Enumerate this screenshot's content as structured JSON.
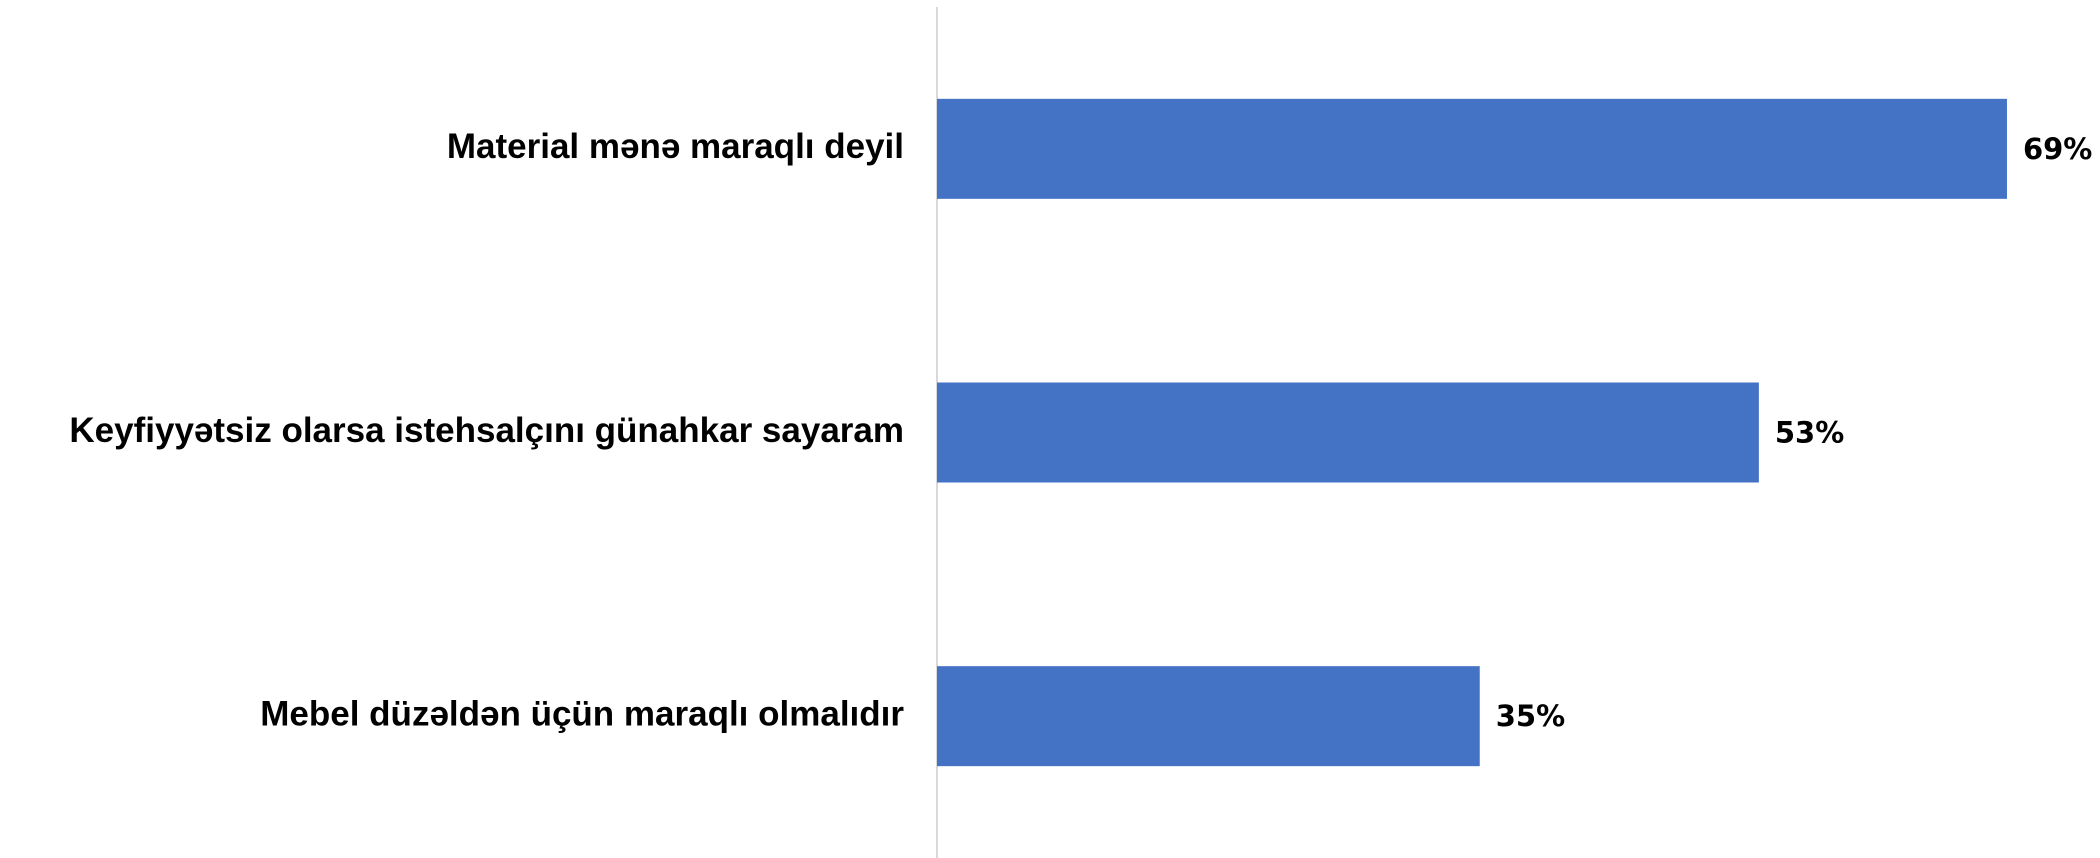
{
  "chart_data": {
    "type": "hbar",
    "categories": [
      "Material mənə maraqlı deyil",
      "Keyfiyyətsiz olarsa istehsalçını günahkar sayaram",
      "Mebel düzəldən üçün maraqlı olmalıdır"
    ],
    "values": [
      69,
      53,
      35
    ],
    "value_labels": [
      "69%",
      "53%",
      "35%"
    ],
    "color": "#4472c4",
    "xlim": [
      0,
      75
    ]
  }
}
